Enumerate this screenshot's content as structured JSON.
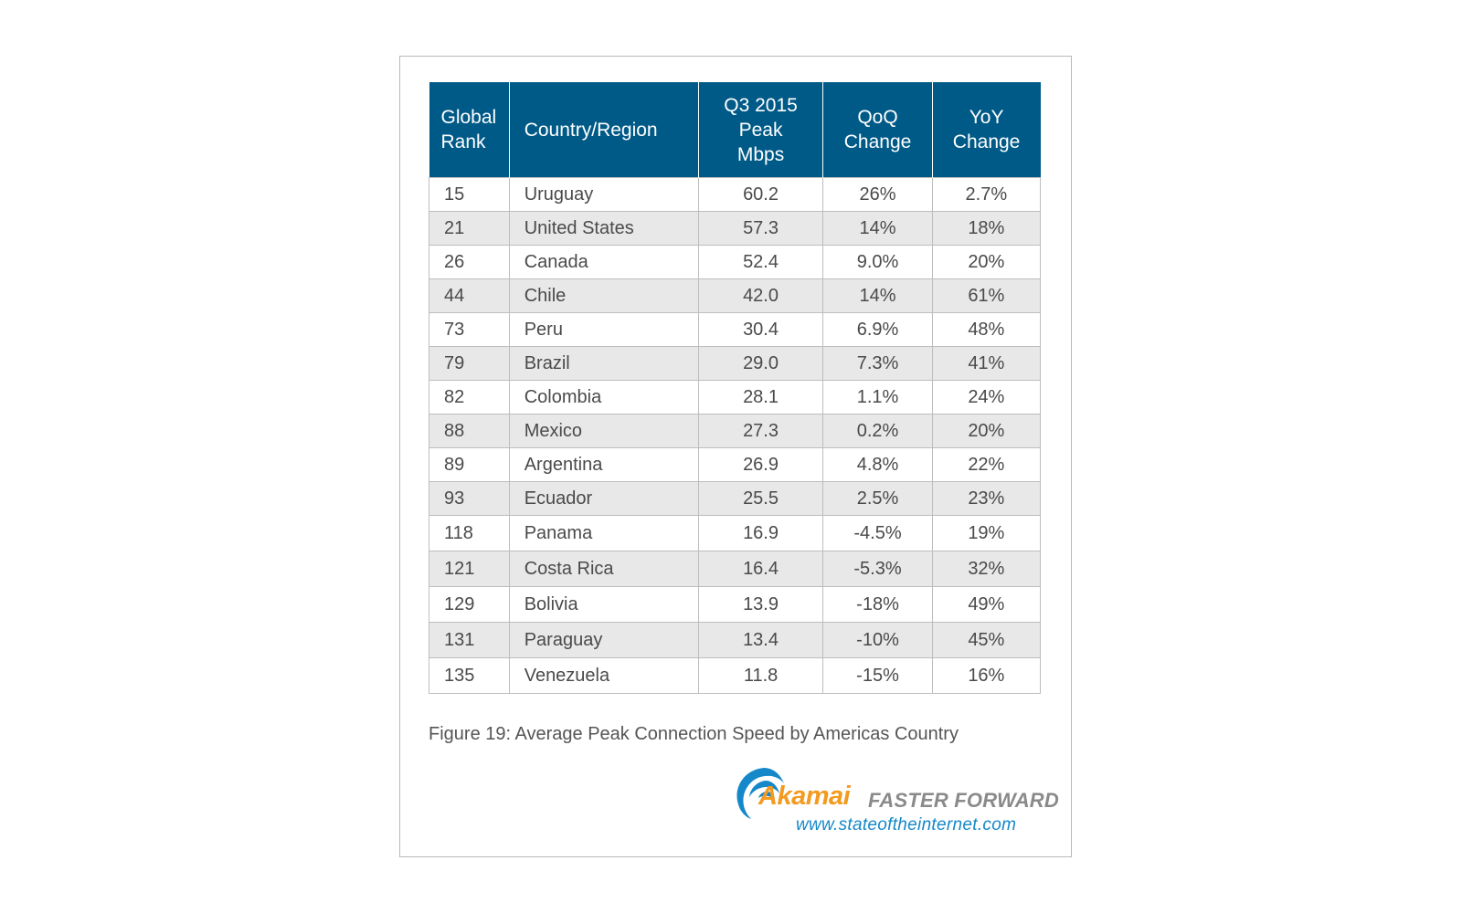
{
  "chart_data": {
    "type": "table",
    "columns": [
      "Global Rank",
      "Country/Region",
      "Q3 2015 Peak Mbps",
      "QoQ Change",
      "YoY Change"
    ],
    "rows": [
      [
        "15",
        "Uruguay",
        "60.2",
        "26%",
        "2.7%"
      ],
      [
        "21",
        "United States",
        "57.3",
        "14%",
        "18%"
      ],
      [
        "26",
        "Canada",
        "52.4",
        "9.0%",
        "20%"
      ],
      [
        "44",
        "Chile",
        "42.0",
        "14%",
        "61%"
      ],
      [
        "73",
        "Peru",
        "30.4",
        "6.9%",
        "48%"
      ],
      [
        "79",
        "Brazil",
        "29.0",
        "7.3%",
        "41%"
      ],
      [
        "82",
        "Colombia",
        "28.1",
        "1.1%",
        "24%"
      ],
      [
        "88",
        "Mexico",
        "27.3",
        "0.2%",
        "20%"
      ],
      [
        "89",
        "Argentina",
        "26.9",
        "4.8%",
        "22%"
      ],
      [
        "93",
        "Ecuador",
        "25.5",
        "2.5%",
        "23%"
      ],
      [
        "118",
        "Panama",
        "16.9",
        "-4.5%",
        "19%"
      ],
      [
        "121",
        "Costa Rica",
        "16.4",
        "-5.3%",
        "32%"
      ],
      [
        "129",
        "Bolivia",
        "13.9",
        "-18%",
        "49%"
      ],
      [
        "131",
        "Paraguay",
        "13.4",
        "-10%",
        "45%"
      ],
      [
        "135",
        "Venezuela",
        "11.8",
        "-15%",
        "16%"
      ]
    ],
    "caption": "Figure 19: Average Peak Connection Speed by Americas Country"
  },
  "header": {
    "rank_lines": [
      "Global",
      "Rank"
    ],
    "country": "Country/Region",
    "peak_lines": [
      "Q3 2015",
      "Peak",
      "Mbps"
    ],
    "qoq_lines": [
      "QoQ",
      "Change"
    ],
    "yoy_lines": [
      "YoY",
      "Change"
    ]
  },
  "branding": {
    "logo_name": "Akamai",
    "tagline": "FASTER FORWARD",
    "url": "www.stateoftheinternet.com",
    "logo_color": "#f39a1f",
    "swoosh_color": "#1488c9",
    "tagline_color": "#8a8a8a"
  },
  "colors": {
    "header_bg": "#005a87",
    "stripe": "#e8e8e8"
  }
}
